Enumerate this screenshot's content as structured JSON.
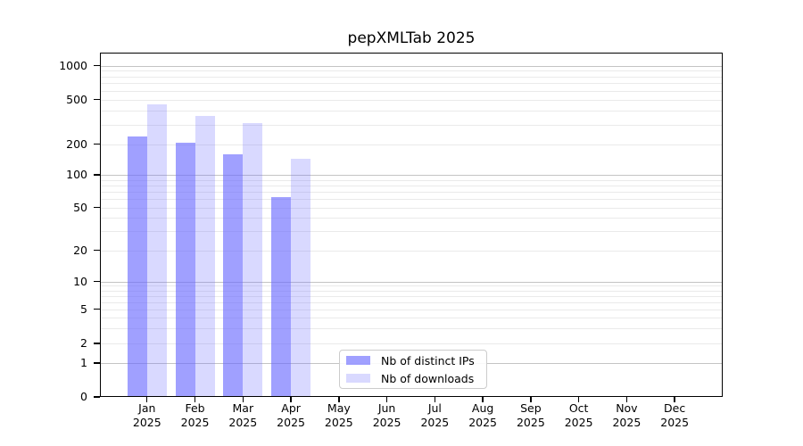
{
  "chart_data": {
    "type": "bar",
    "title": "pepXMLTab 2025",
    "categories": [
      "Jan 2025",
      "Feb 2025",
      "Mar 2025",
      "Apr 2025",
      "May 2025",
      "Jun 2025",
      "Jul 2025",
      "Aug 2025",
      "Sep 2025",
      "Oct 2025",
      "Nov 2025",
      "Dec 2025"
    ],
    "series": [
      {
        "name": "Nb of distinct IPs",
        "color": "rgba(102,102,255,0.62)",
        "values": [
          233,
          205,
          158,
          62,
          null,
          null,
          null,
          null,
          null,
          null,
          null,
          null
        ]
      },
      {
        "name": "Nb of downloads",
        "color": "rgba(102,102,255,0.25)",
        "values": [
          455,
          358,
          308,
          143,
          null,
          null,
          null,
          null,
          null,
          null,
          null,
          null
        ]
      }
    ],
    "xlabel": "",
    "ylabel": "",
    "yscale": "pseudo-log",
    "yticks": [
      0,
      1,
      2,
      5,
      10,
      20,
      50,
      100,
      200,
      500,
      1000
    ],
    "ylim": [
      0,
      1300
    ],
    "grid": "horizontal",
    "major_gridlines": [
      1,
      10,
      100,
      1000
    ],
    "minor_gridlines": [
      2,
      3,
      4,
      5,
      6,
      7,
      8,
      9,
      20,
      30,
      40,
      50,
      60,
      70,
      80,
      90,
      200,
      300,
      400,
      500,
      600,
      700,
      800,
      900
    ],
    "legend_position": "lower center inside plot"
  },
  "colors": {
    "bar_ips": "rgba(102,102,255,0.62)",
    "bar_downloads": "rgba(102,102,255,0.25)",
    "grid_minor": "#eaeaea",
    "grid_major": "#c4c4c4",
    "axis": "#000000",
    "text": "#000000",
    "legend_border": "#cccccc"
  },
  "legend": {
    "items": [
      "Nb of distinct IPs",
      "Nb of downloads"
    ]
  }
}
